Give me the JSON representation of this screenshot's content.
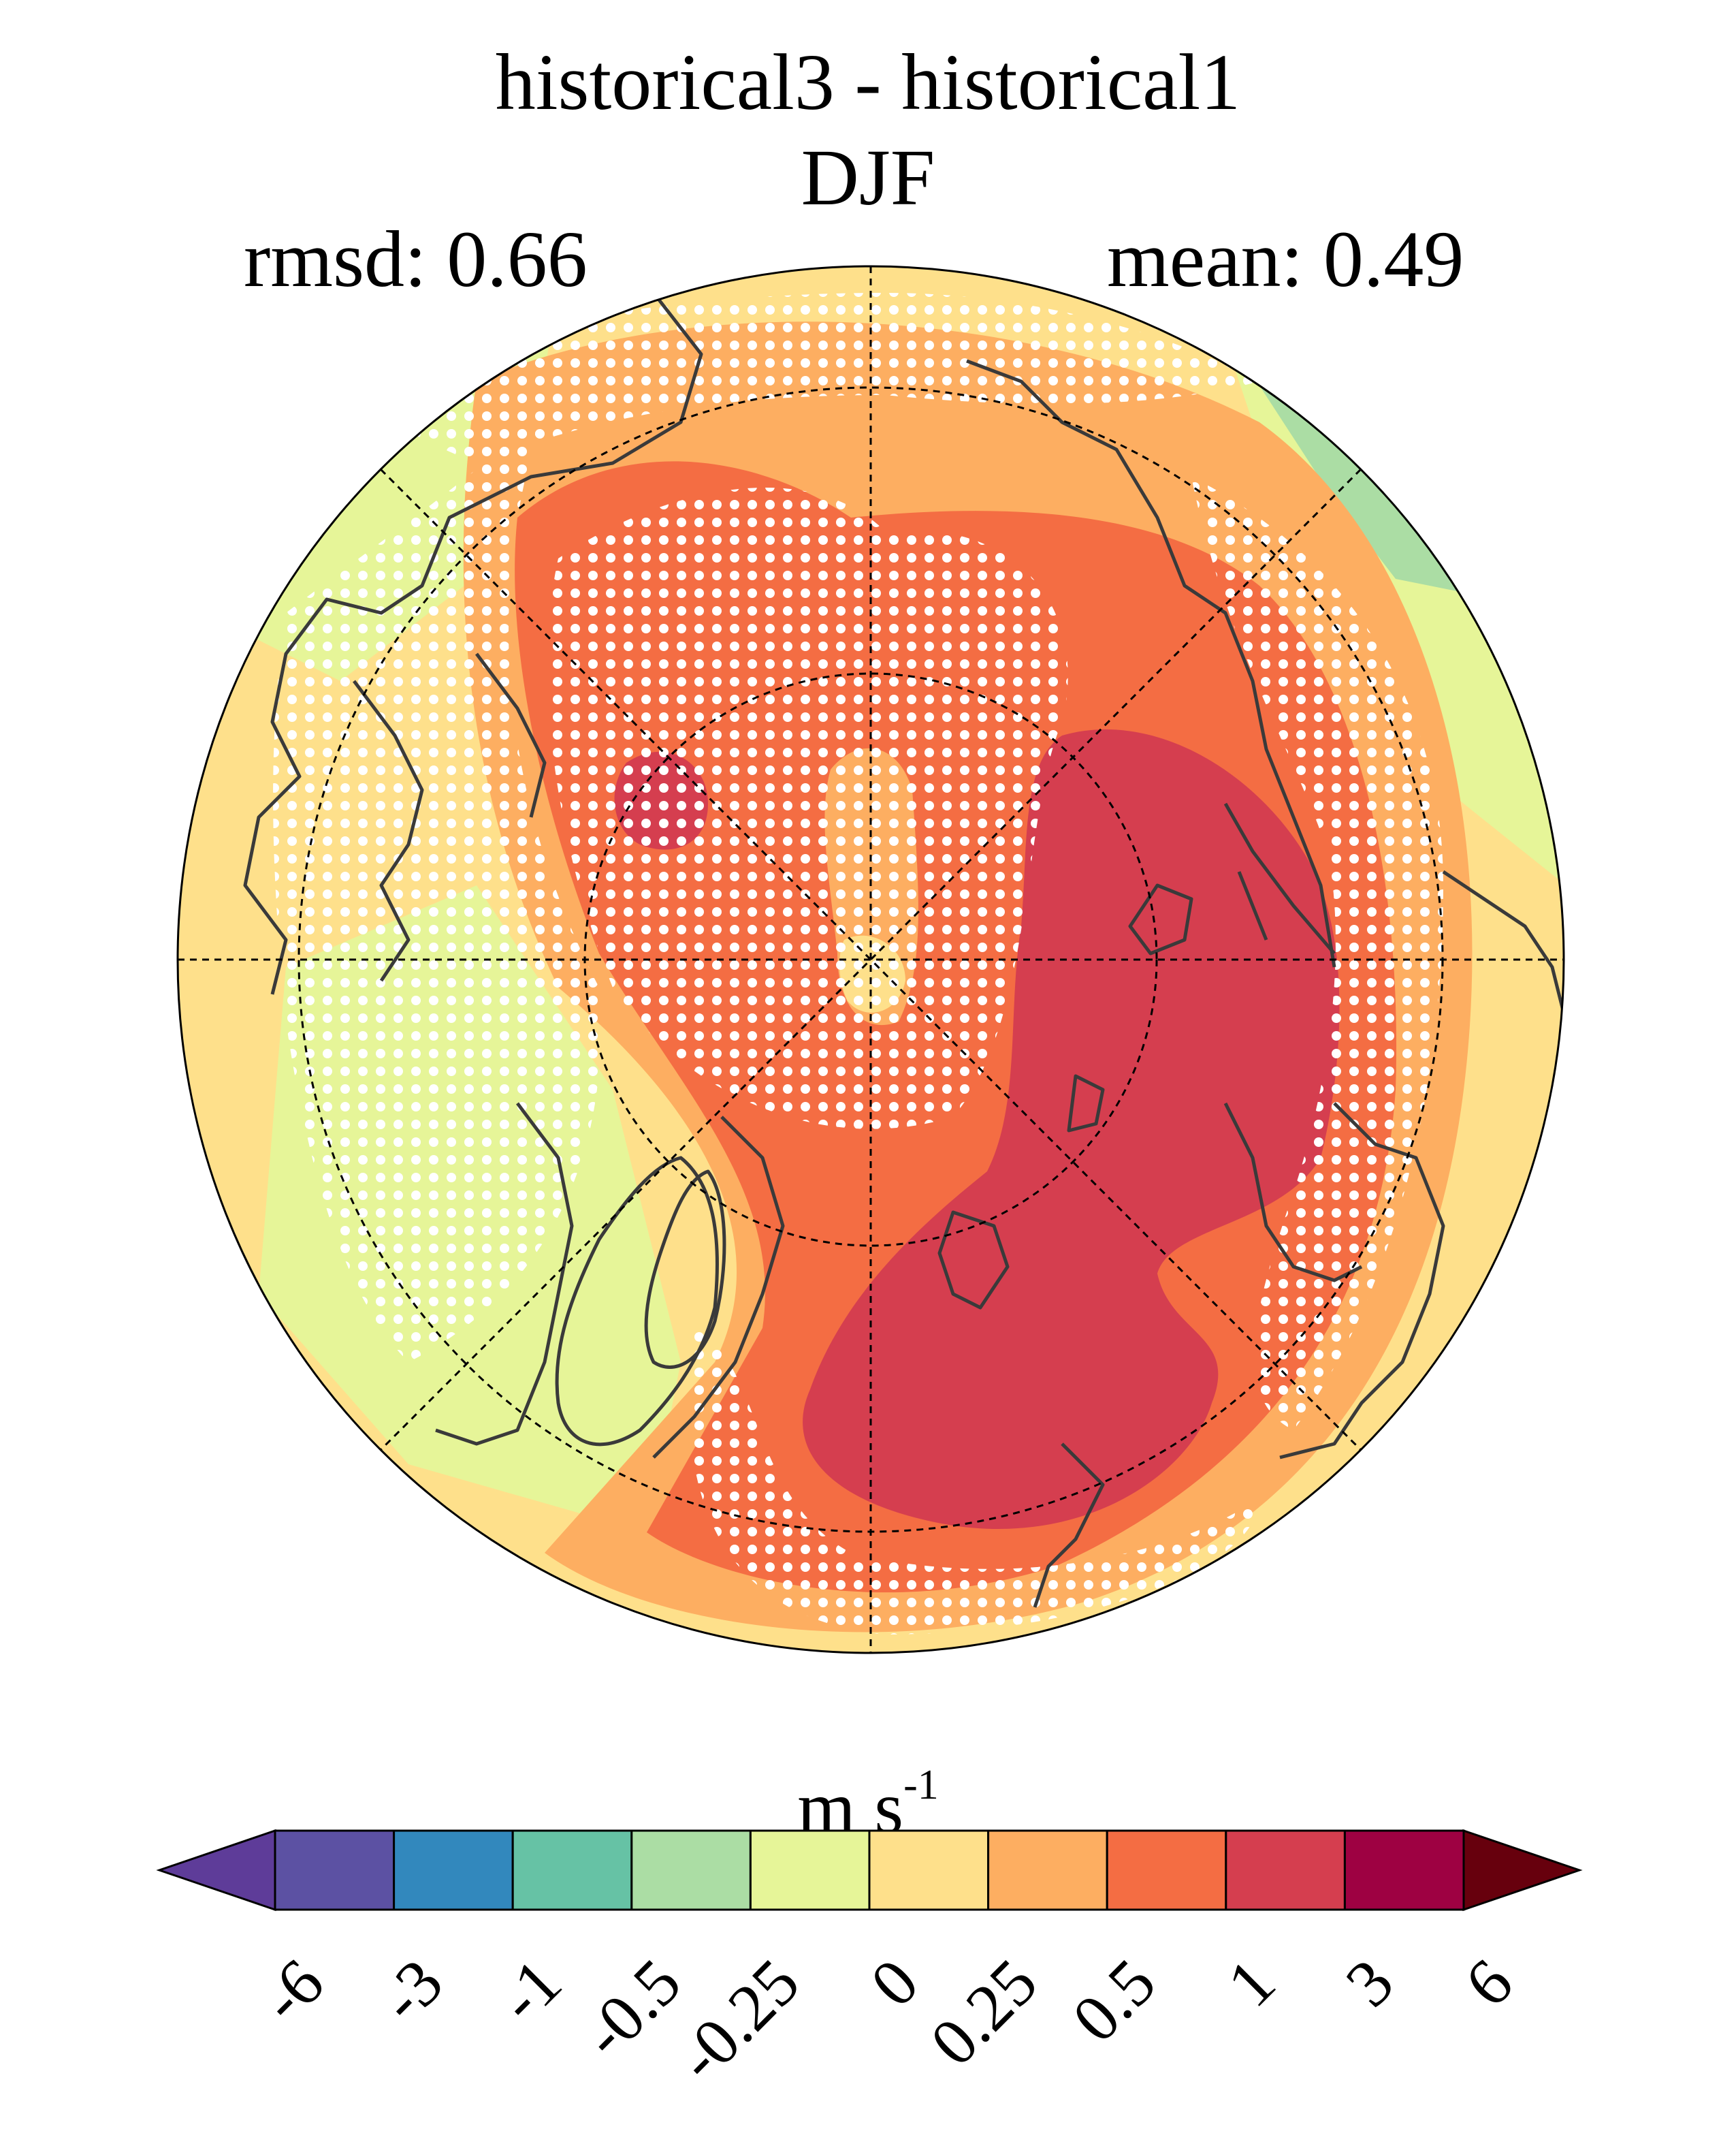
{
  "title": {
    "line1": "historical3 - historical1",
    "line2": "DJF",
    "rmsd": "rmsd: 0.66",
    "mean": "mean: 0.49"
  },
  "colorbar": {
    "units_base": "m s",
    "units_exp": "-1",
    "ticks": [
      "-6",
      "-3",
      "-1",
      "-0.5",
      "-0.25",
      "0",
      "0.25",
      "0.5",
      "1",
      "3",
      "6"
    ],
    "colors": [
      "#5e3c99",
      "#5c51a3",
      "#3288bd",
      "#66c2a5",
      "#abdda4",
      "#e6f598",
      "#fee08b",
      "#fdae61",
      "#f46d43",
      "#d53e4f",
      "#9e0142",
      "#67000d"
    ],
    "extend": "both"
  },
  "map": {
    "projection": "north-polar-stereographic",
    "field": "difference",
    "stippling": "significance dots",
    "colors": {
      "background_field": "#fdae61",
      "land_lines": "#3a3a3a",
      "stipple": "#ffffff"
    }
  }
}
